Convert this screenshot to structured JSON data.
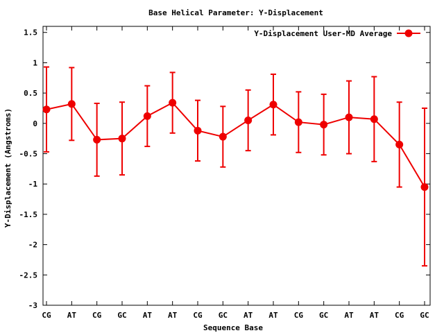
{
  "chart_data": {
    "type": "line",
    "title": "Base  Helical Parameter: Y-Displacement",
    "xlabel": "Sequence Base",
    "ylabel": "Y-Displacement (Angstroms)",
    "ylim": [
      -3,
      1.6
    ],
    "yticks": [
      1.5,
      1,
      0.5,
      0,
      -0.5,
      -1,
      -1.5,
      -2,
      -2.5,
      -3
    ],
    "ytick_labels": [
      "1.5",
      "1",
      "0.5",
      "0",
      "-0.5",
      "-1",
      "-1.5",
      "-2",
      "-2.5",
      "-3"
    ],
    "categories": [
      "CG",
      "AT",
      "CG",
      "GC",
      "AT",
      "AT",
      "CG",
      "GC",
      "AT",
      "AT",
      "CG",
      "GC",
      "AT",
      "AT",
      "CG",
      "GC"
    ],
    "grid": false,
    "legend": "top-right",
    "series": [
      {
        "name": "Y-Displacement User-MD Average",
        "color": "#ee0000",
        "values": [
          0.23,
          0.32,
          -0.27,
          -0.25,
          0.12,
          0.34,
          -0.12,
          -0.22,
          0.05,
          0.31,
          0.02,
          -0.02,
          0.1,
          0.07,
          -0.35,
          -1.05
        ],
        "error_low": [
          -0.47,
          -0.28,
          -0.87,
          -0.85,
          -0.38,
          -0.16,
          -0.62,
          -0.72,
          -0.45,
          -0.19,
          -0.48,
          -0.52,
          -0.5,
          -0.63,
          -1.05,
          -2.35
        ],
        "error_high": [
          0.93,
          0.92,
          0.33,
          0.35,
          0.62,
          0.84,
          0.38,
          0.28,
          0.55,
          0.81,
          0.52,
          0.48,
          0.7,
          0.77,
          0.35,
          0.25
        ]
      }
    ]
  }
}
